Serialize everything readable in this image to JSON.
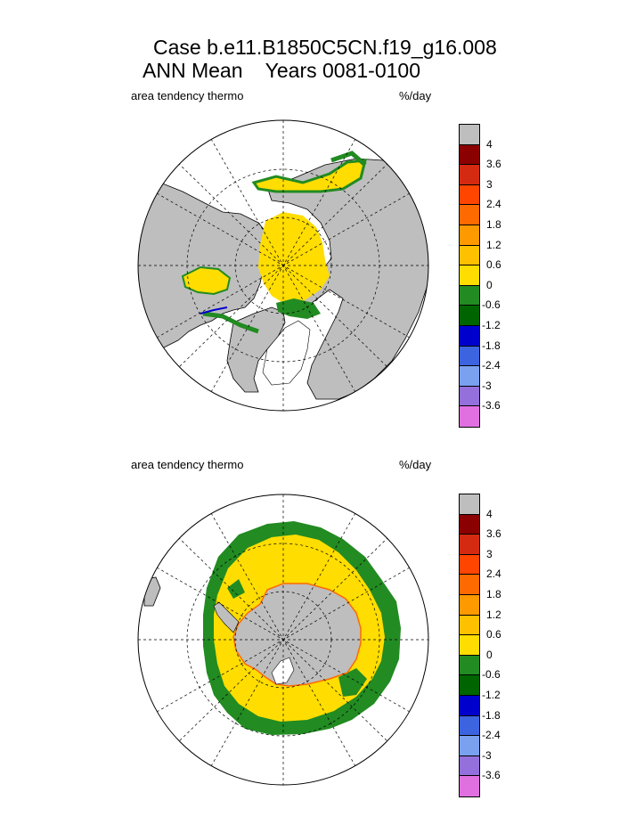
{
  "title": {
    "line1": "Case b.e11.B1850C5CN.f19_g16.008",
    "line2": "ANN Mean    Years 0081-0100"
  },
  "panels": [
    {
      "name": "north",
      "left_label": "area tendency thermo",
      "right_label": "%/day"
    },
    {
      "name": "south",
      "left_label": "area tendency thermo",
      "right_label": "%/day"
    }
  ],
  "colorbar": {
    "labels": [
      "4",
      "3.6",
      "3",
      "2.4",
      "1.8",
      "1.2",
      "0.6",
      "0",
      "-0.6",
      "-1.2",
      "-1.8",
      "-2.4",
      "-3",
      "-3.6"
    ],
    "colors": [
      "#bebebe",
      "#8b0000",
      "#d42a12",
      "#ff4500",
      "#ff6a00",
      "#ff9900",
      "#ffc000",
      "#ffdd00",
      "#228b22",
      "#006400",
      "#0000cd",
      "#3c64e0",
      "#7aa0f0",
      "#9370db",
      "#e070e0"
    ]
  },
  "colors": {
    "land": "#bebebe",
    "growth": "#ffdd00",
    "melt": "#228b22",
    "ocean": "#ffffff"
  }
}
